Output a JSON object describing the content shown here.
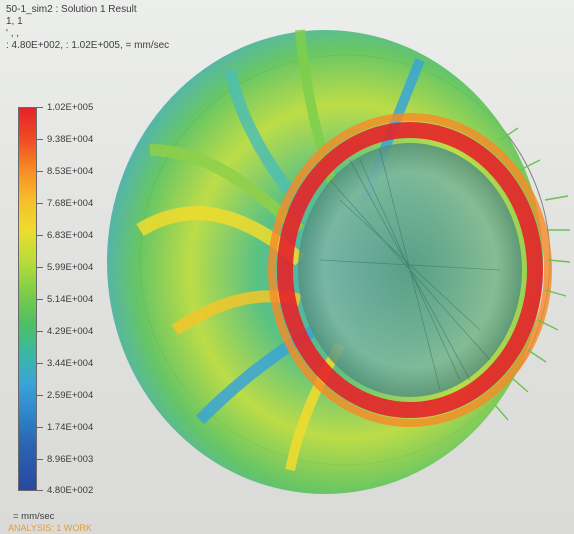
{
  "header": {
    "title": "50-1_sim2 : Solution 1 Result",
    "line2": "1,  1",
    "line3": "' , ,",
    "line4": ": 4.80E+002,  : 1.02E+005,  = mm/sec"
  },
  "legend": {
    "labels": [
      "1.02E+005",
      "9.38E+004",
      "8.53E+004",
      "7.68E+004",
      "6.83E+004",
      "5.99E+004",
      "5.14E+004",
      "4.29E+004",
      "3.44E+004",
      "2.59E+004",
      "1.74E+004",
      "8.96E+003",
      "4.80E+002"
    ],
    "unit": "= mm/sec"
  },
  "footer": {
    "analysis": "ANALYSIS: 1 WORK"
  },
  "colors": {
    "high": "#e5222a",
    "mid": "#eddd2d",
    "low": "#2a47a0",
    "background": "#e4e5e3"
  }
}
